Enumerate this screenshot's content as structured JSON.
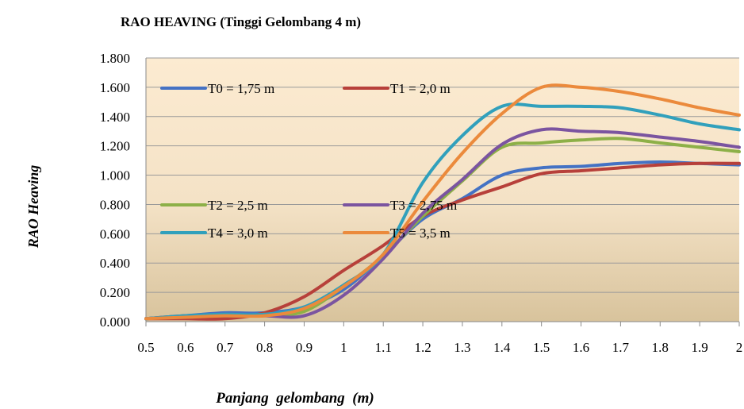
{
  "chart_data": {
    "type": "line",
    "title": "RAO HEAVING (Tinggi Gelombang 4 m)",
    "xlabel": "Panjang  gelombang  (m)",
    "ylabel": "RAO Heaving",
    "x": [
      0.5,
      0.6,
      0.7,
      0.8,
      0.9,
      1.0,
      1.1,
      1.2,
      1.3,
      1.4,
      1.5,
      1.6,
      1.7,
      1.8,
      1.9,
      2.0
    ],
    "x_tick_labels": [
      "0.5",
      "0.6",
      "0.7",
      "0.8",
      "0.9",
      "1",
      "1.1",
      "1.2",
      "1.3",
      "1.4",
      "1.5",
      "1.6",
      "1.7",
      "1.8",
      "1.9",
      "2"
    ],
    "xlim": [
      0.5,
      2.0
    ],
    "ylim": [
      0,
      1.8
    ],
    "y_ticks": [
      0,
      0.2,
      0.4,
      0.6,
      0.8,
      1.0,
      1.2,
      1.4,
      1.6,
      1.8
    ],
    "y_tick_labels": [
      "0.000",
      "0.200",
      "0.400",
      "0.600",
      "0.800",
      "1.000",
      "1.200",
      "1.400",
      "1.600",
      "1.800"
    ],
    "grid": "horizontal",
    "background": "gradient beige",
    "legend_placement": "inside-left",
    "series": [
      {
        "name": "T0 = 1,75 m",
        "color": "#4472C4",
        "values": [
          0.02,
          0.04,
          0.06,
          0.06,
          0.1,
          0.22,
          0.45,
          0.7,
          0.84,
          1.0,
          1.05,
          1.06,
          1.08,
          1.09,
          1.08,
          1.07
        ]
      },
      {
        "name": "T1 = 2,0 m",
        "color": "#B7403A",
        "values": [
          0.02,
          0.02,
          0.02,
          0.06,
          0.17,
          0.35,
          0.52,
          0.72,
          0.83,
          0.92,
          1.01,
          1.03,
          1.05,
          1.07,
          1.08,
          1.08
        ]
      },
      {
        "name": "T2 = 2,5 m",
        "color": "#8DB048",
        "values": [
          0.02,
          0.04,
          0.04,
          0.04,
          0.07,
          0.24,
          0.45,
          0.72,
          0.96,
          1.19,
          1.22,
          1.24,
          1.25,
          1.22,
          1.19,
          1.16
        ]
      },
      {
        "name": "T3 = 2,75 m",
        "color": "#7B54A0",
        "values": [
          0.02,
          0.04,
          0.04,
          0.04,
          0.04,
          0.18,
          0.43,
          0.74,
          0.97,
          1.21,
          1.31,
          1.3,
          1.29,
          1.26,
          1.23,
          1.19
        ]
      },
      {
        "name": "T4 = 3,0 m",
        "color": "#31A0BC",
        "values": [
          0.02,
          0.04,
          0.05,
          0.05,
          0.1,
          0.25,
          0.46,
          0.95,
          1.27,
          1.47,
          1.47,
          1.47,
          1.46,
          1.41,
          1.35,
          1.31
        ]
      },
      {
        "name": "T5 = 3,5 m",
        "color": "#EB8A3C",
        "values": [
          0.02,
          0.03,
          0.04,
          0.04,
          0.09,
          0.24,
          0.46,
          0.82,
          1.15,
          1.42,
          1.6,
          1.6,
          1.57,
          1.52,
          1.46,
          1.41
        ]
      }
    ]
  }
}
